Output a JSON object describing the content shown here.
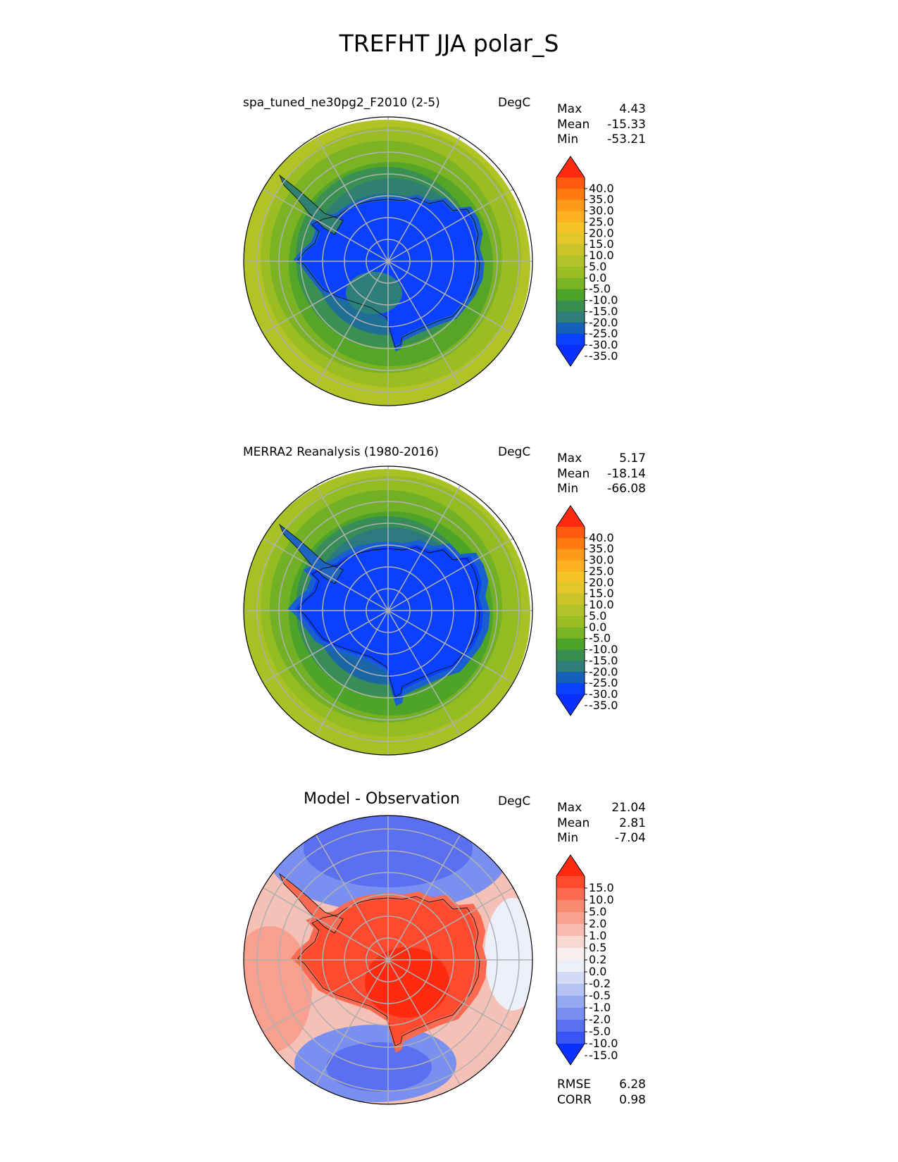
{
  "figure": {
    "title": "TREFHT JJA polar_S"
  },
  "panels": [
    {
      "id": "test",
      "title": "spa_tuned_ne30pg2_F2010 (2-5)",
      "units": "DegC",
      "stats": {
        "max_label": "Max",
        "max": "4.43",
        "mean_label": "Mean",
        "mean": "-15.33",
        "min_label": "Min",
        "min": "-53.21"
      },
      "colorbar": {
        "labels": [
          "40.0",
          "35.0",
          "30.0",
          "25.0",
          "20.0",
          "15.0",
          "10.0",
          "5.0",
          "0.0",
          "-5.0",
          "-10.0",
          "-15.0",
          "-20.0",
          "-25.0",
          "-30.0",
          "-35.0"
        ],
        "colors": [
          "#ff2a10",
          "#ff5a10",
          "#ff7a10",
          "#ff9a18",
          "#ffb020",
          "#f5c428",
          "#e0c82a",
          "#c8c42a",
          "#b4c22a",
          "#9abe22",
          "#78b424",
          "#4ea428",
          "#3a8e50",
          "#2e7f7a",
          "#1560b8",
          "#0a40ff",
          "#0a30ff"
        ]
      },
      "chart_data": {
        "type": "heatmap",
        "projection": "south-polar-stereographic",
        "variable": "TREFHT",
        "season": "JJA",
        "units": "DegC",
        "field_summary": {
          "max": 4.43,
          "mean": -15.33,
          "min": -53.21
        }
      }
    },
    {
      "id": "reference",
      "title": "MERRA2 Reanalysis (1980-2016)",
      "units": "DegC",
      "stats": {
        "max_label": "Max",
        "max": "5.17",
        "mean_label": "Mean",
        "mean": "-18.14",
        "min_label": "Min",
        "min": "-66.08"
      },
      "colorbar": {
        "labels": [
          "40.0",
          "35.0",
          "30.0",
          "25.0",
          "20.0",
          "15.0",
          "10.0",
          "5.0",
          "0.0",
          "-5.0",
          "-10.0",
          "-15.0",
          "-20.0",
          "-25.0",
          "-30.0",
          "-35.0"
        ],
        "colors": [
          "#ff2a10",
          "#ff5a10",
          "#ff7a10",
          "#ff9a18",
          "#ffb020",
          "#f5c428",
          "#e0c82a",
          "#c8c42a",
          "#b4c22a",
          "#9abe22",
          "#78b424",
          "#4ea428",
          "#3a8e50",
          "#2e7f7a",
          "#1560b8",
          "#0a40ff",
          "#0a30ff"
        ]
      },
      "chart_data": {
        "type": "heatmap",
        "projection": "south-polar-stereographic",
        "variable": "TREFHT",
        "season": "JJA",
        "units": "DegC",
        "field_summary": {
          "max": 5.17,
          "mean": -18.14,
          "min": -66.08
        }
      }
    },
    {
      "id": "diff",
      "title": "Model - Observation",
      "units": "DegC",
      "stats": {
        "max_label": "Max",
        "max": "21.04",
        "mean_label": "Mean",
        "mean": "2.81",
        "min_label": "Min",
        "min": "-7.04"
      },
      "metrics": {
        "rmse_label": "RMSE",
        "rmse": "6.28",
        "corr_label": "CORR",
        "corr": "0.98"
      },
      "colorbar": {
        "labels": [
          "15.0",
          "10.0",
          "5.0",
          "2.0",
          "1.0",
          "0.5",
          "0.2",
          "0.0",
          "-0.2",
          "-0.5",
          "-1.0",
          "-2.0",
          "-5.0",
          "-10.0",
          "-15.0"
        ],
        "colors": [
          "#ff2a10",
          "#ff4a30",
          "#fb6a50",
          "#f88a70",
          "#f8a090",
          "#f8bcb0",
          "#fad8d2",
          "#fbeeee",
          "#eceef8",
          "#d2daf6",
          "#b4c2f4",
          "#95a8f2",
          "#7a90f0",
          "#5a70f0",
          "#3a55f5",
          "#0a30ff"
        ]
      },
      "chart_data": {
        "type": "heatmap",
        "projection": "south-polar-stereographic",
        "variable": "TREFHT",
        "season": "JJA",
        "units": "DegC",
        "field_summary": {
          "max": 21.04,
          "mean": 2.81,
          "min": -7.04,
          "rmse": 6.28,
          "corr": 0.98
        }
      }
    }
  ]
}
